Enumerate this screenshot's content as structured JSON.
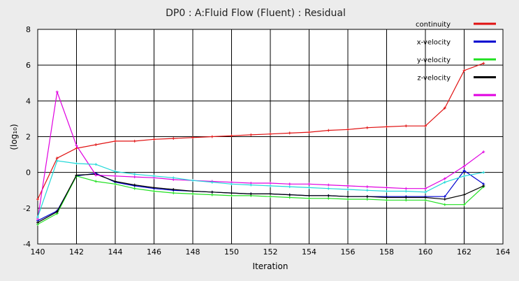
{
  "chart_data": {
    "type": "line",
    "title": "DP0 : A:Fluid Flow (Fluent) : Residual",
    "xlabel": "Iteration",
    "ylabel": "(log₁₀)",
    "xlim": [
      140,
      164
    ],
    "ylim": [
      -4,
      8
    ],
    "xticks": [
      140,
      142,
      144,
      146,
      148,
      150,
      152,
      154,
      156,
      158,
      160,
      162,
      164
    ],
    "yticks": [
      -4,
      -2,
      0,
      2,
      4,
      6,
      8
    ],
    "grid": true,
    "legend_position": "top-right",
    "x": [
      140,
      141,
      142,
      143,
      144,
      145,
      146,
      147,
      148,
      149,
      150,
      151,
      152,
      153,
      154,
      155,
      156,
      157,
      158,
      159,
      160,
      161,
      162,
      163
    ],
    "series": [
      {
        "name": "continuity",
        "color": "#e01010",
        "values": [
          -1.5,
          0.8,
          1.35,
          1.55,
          1.75,
          1.75,
          1.85,
          1.9,
          1.95,
          2.0,
          2.05,
          2.1,
          2.15,
          2.2,
          2.25,
          2.35,
          2.4,
          2.5,
          2.55,
          2.6,
          2.6,
          3.6,
          5.7,
          6.1
        ]
      },
      {
        "name": "x-velocity",
        "color": "#0000d0",
        "values": [
          -2.7,
          -2.15,
          -0.2,
          -0.05,
          -0.55,
          -0.75,
          -0.9,
          -1.0,
          -1.05,
          -1.1,
          -1.15,
          -1.2,
          -1.2,
          -1.25,
          -1.3,
          -1.3,
          -1.35,
          -1.35,
          -1.35,
          -1.35,
          -1.35,
          -1.35,
          0.1,
          -0.65
        ]
      },
      {
        "name": "y-velocity",
        "color": "#20e020",
        "values": [
          -2.9,
          -2.3,
          -0.2,
          -0.5,
          -0.65,
          -0.9,
          -1.05,
          -1.15,
          -1.2,
          -1.25,
          -1.3,
          -1.3,
          -1.35,
          -1.4,
          -1.45,
          -1.45,
          -1.5,
          -1.5,
          -1.55,
          -1.55,
          -1.55,
          -1.8,
          -1.8,
          -0.8
        ]
      },
      {
        "name": "z-velocity",
        "color": "#000000",
        "values": [
          -2.8,
          -2.2,
          -0.15,
          -0.1,
          -0.5,
          -0.7,
          -0.85,
          -0.95,
          -1.05,
          -1.1,
          -1.15,
          -1.2,
          -1.2,
          -1.25,
          -1.3,
          -1.3,
          -1.35,
          -1.35,
          -1.4,
          -1.4,
          -1.4,
          -1.5,
          -1.25,
          -0.75
        ]
      },
      {
        "name": "",
        "color": "#e000e0",
        "values": [
          -2.6,
          4.5,
          1.5,
          -0.15,
          -0.2,
          -0.25,
          -0.3,
          -0.4,
          -0.45,
          -0.5,
          -0.55,
          -0.6,
          -0.6,
          -0.65,
          -0.65,
          -0.7,
          -0.75,
          -0.8,
          -0.85,
          -0.9,
          -0.9,
          -0.35,
          0.35,
          1.15
        ]
      },
      {
        "name": "",
        "color": "#20d8d8",
        "values": [
          -2.5,
          0.65,
          0.5,
          0.45,
          0.05,
          -0.1,
          -0.2,
          -0.3,
          -0.45,
          -0.55,
          -0.65,
          -0.7,
          -0.75,
          -0.8,
          -0.85,
          -0.9,
          -0.95,
          -1.0,
          -1.05,
          -1.05,
          -1.1,
          -0.55,
          -0.2,
          0.0
        ]
      }
    ]
  }
}
